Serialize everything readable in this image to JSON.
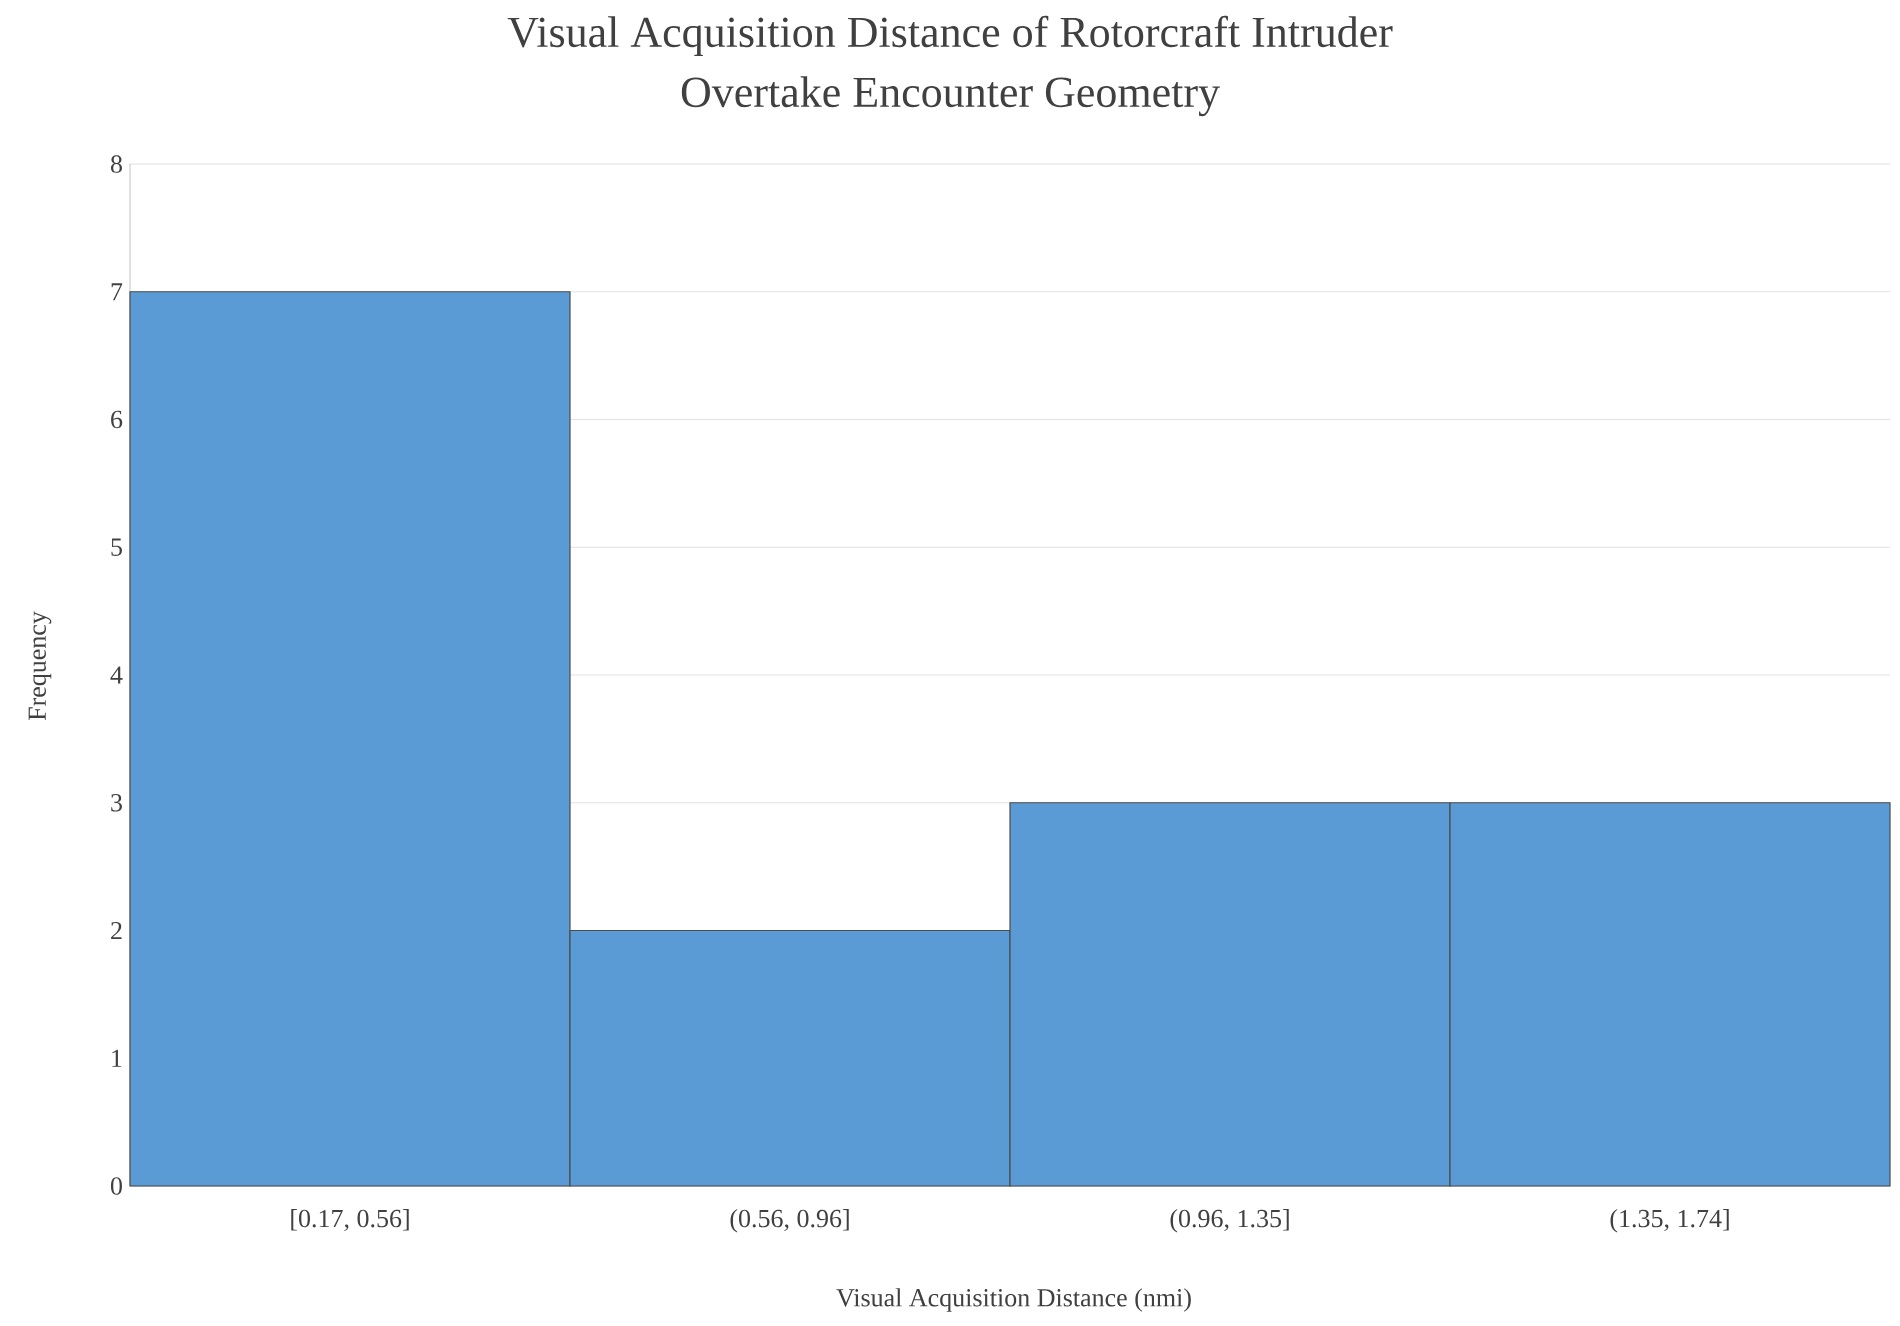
{
  "chart_data": {
    "type": "bar",
    "title": "Visual Acquisition Distance of Rotorcraft Intruder\nOvertake Encounter Geometry",
    "xlabel": "Visual Acquisition Distance (nmi)",
    "ylabel": "Frequency",
    "categories": [
      "[0.17, 0.56]",
      "(0.56, 0.96]",
      "(0.96, 1.35]",
      "(1.35, 1.74]"
    ],
    "values": [
      7,
      2,
      3,
      3
    ],
    "color": "#5b9bd5",
    "ylim": [
      0,
      8
    ],
    "yticks": [
      0,
      1,
      2,
      3,
      4,
      5,
      6,
      7,
      8
    ],
    "grid": "y"
  }
}
